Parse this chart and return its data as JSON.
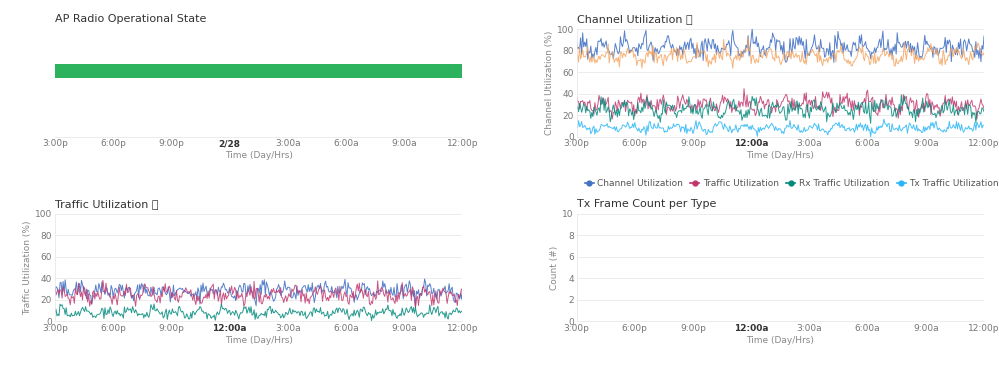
{
  "top_left_title": "AP Radio Operational State",
  "top_right_title": "Channel Utilization",
  "bottom_left_title": "Traffic Utilization",
  "bottom_right_title": "Tx Frame Count per Type",
  "x_label": "Time (Day/Hrs)",
  "x_ticks_tl": [
    "3:00p",
    "6:00p",
    "9:00p",
    "2/28",
    "3:00a",
    "6:00a",
    "9:00a",
    "12:00p"
  ],
  "x_ticks": [
    "3:00p",
    "6:00p",
    "9:00p",
    "12:00a",
    "3:00a",
    "6:00a",
    "9:00a",
    "12:00p"
  ],
  "green_bar_color": "#2db35d",
  "chan_util_color": "#4472c4",
  "traffic_util_color": "#c0376e",
  "rx_traffic_color": "#00897b",
  "tx_traffic_color": "#29b6f6",
  "interference_color": "#f4a460",
  "bg_color": "#ffffff",
  "grid_color": "#e5e5e5",
  "title_fontsize": 8,
  "tick_fontsize": 6.5,
  "axis_label_fontsize": 6.5,
  "legend_fontsize": 6.5,
  "n_points": 400,
  "ylim_chan": [
    0,
    100
  ],
  "ylim_traffic": [
    0,
    100
  ],
  "ylim_txframe": [
    0,
    10
  ],
  "yticks_chan": [
    0,
    20,
    40,
    60,
    80,
    100
  ],
  "yticks_traffic": [
    0,
    20,
    40,
    60,
    80,
    100
  ],
  "yticks_txframe": [
    0,
    2,
    4,
    6,
    8,
    10
  ],
  "ylabel_chan": "Channel Utilization (%)",
  "ylabel_traffic": "Traffic Utilization (%)",
  "ylabel_txframe": "Count (#)"
}
